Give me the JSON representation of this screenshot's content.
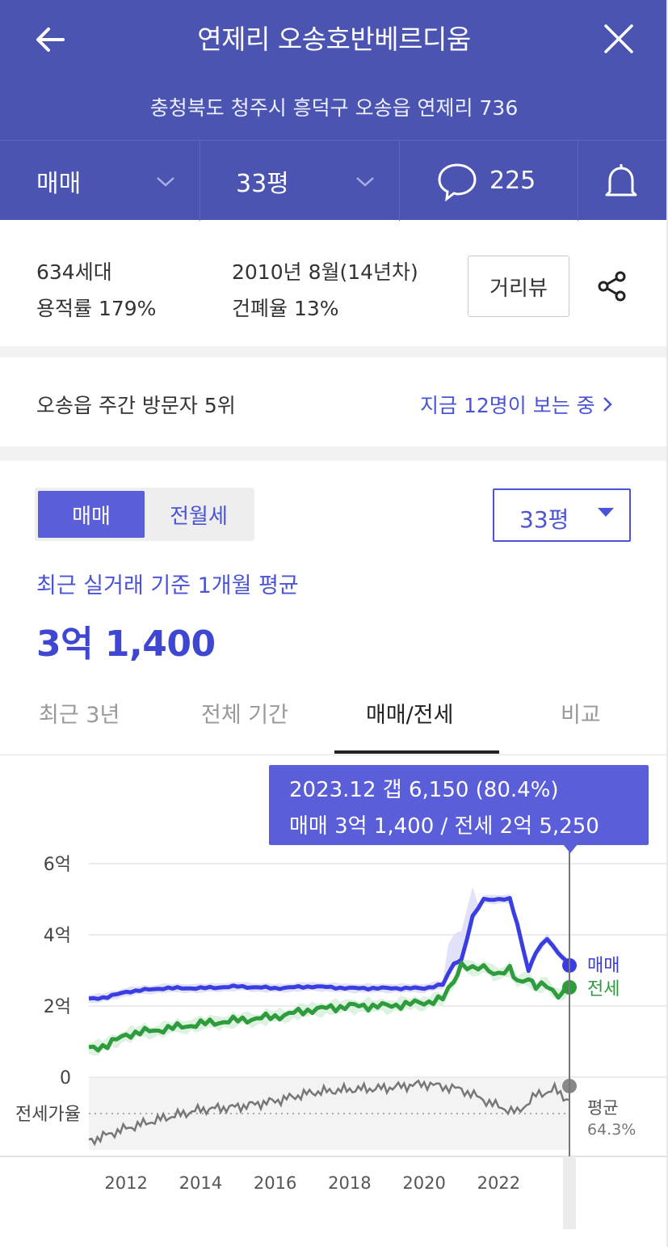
{
  "header": {
    "title": "연제리 오송호반베르디움",
    "address": "충청북도 청주시 흥덕구 오송읍 연제리 736",
    "deal_type": "매매",
    "size": "33평",
    "comment_count": "225"
  },
  "info": {
    "households": "634세대",
    "floor_area_ratio": "용적률 179%",
    "built": "2010년 8월(14년차)",
    "building_coverage": "건폐율 13%",
    "street_view_label": "거리뷰"
  },
  "visitors": {
    "rank_text": "오송읍 주간 방문자 5위",
    "live_text": "지금 12명이 보는 중"
  },
  "price": {
    "toggle_sale": "매매",
    "toggle_rent": "전월세",
    "size_select": "33평",
    "avg_label": "최근 실거래 기준 1개월 평균",
    "avg_value": "3억 1,400"
  },
  "tabs": [
    "최근 3년",
    "전체 기간",
    "매매/전세",
    "비교"
  ],
  "tooltip": {
    "line1": "2023.12  갭 6,150 (80.4%)",
    "line2": "매매 3억 1,400 / 전세 2억 5,250"
  },
  "chart_data": {
    "type": "line",
    "y_ticks": [
      "6억",
      "4억",
      "2억",
      "0"
    ],
    "ylim": [
      0,
      6
    ],
    "x_ticks": [
      "2012",
      "2014",
      "2016",
      "2018",
      "2020",
      "2022"
    ],
    "ratio_label": "전세가율",
    "series": [
      {
        "name": "매매",
        "color": "#3a3ee0",
        "x": [
          2011.0,
          2011.5,
          2012.0,
          2013.0,
          2014.0,
          2015.0,
          2016.0,
          2017.0,
          2018.0,
          2019.0,
          2020.0,
          2020.5,
          2020.8,
          2021.0,
          2021.3,
          2021.6,
          2022.0,
          2022.3,
          2022.5,
          2022.8,
          2023.0,
          2023.3,
          2023.6,
          2023.9
        ],
        "values": [
          2.2,
          2.25,
          2.4,
          2.5,
          2.5,
          2.55,
          2.5,
          2.55,
          2.5,
          2.5,
          2.5,
          2.6,
          3.2,
          3.3,
          4.5,
          5.0,
          5.0,
          5.0,
          4.3,
          3.0,
          3.5,
          3.9,
          3.5,
          3.14
        ]
      },
      {
        "name": "전세",
        "color": "#2e9b3c",
        "x": [
          2011.0,
          2011.5,
          2012.0,
          2013.0,
          2014.0,
          2015.0,
          2016.0,
          2017.0,
          2018.0,
          2019.0,
          2020.0,
          2020.5,
          2020.8,
          2021.0,
          2021.3,
          2021.6,
          2022.0,
          2022.3,
          2022.5,
          2022.8,
          2023.0,
          2023.3,
          2023.6,
          2023.9
        ],
        "values": [
          0.8,
          0.9,
          1.2,
          1.35,
          1.5,
          1.6,
          1.7,
          1.9,
          2.0,
          2.0,
          2.1,
          2.2,
          2.7,
          3.2,
          3.0,
          3.1,
          2.9,
          3.0,
          2.7,
          2.8,
          2.5,
          2.6,
          2.3,
          2.525
        ]
      }
    ],
    "ratio_series": {
      "x": [
        2011.0,
        2012.0,
        2013.0,
        2014.0,
        2015.0,
        2016.0,
        2017.0,
        2018.0,
        2019.0,
        2020.0,
        2020.5,
        2021.0,
        2021.5,
        2022.0,
        2022.5,
        2023.0,
        2023.5,
        2023.9
      ],
      "values": [
        36,
        45,
        52,
        58,
        60,
        64,
        70,
        72,
        73,
        76,
        74,
        72,
        66,
        60,
        56,
        68,
        72,
        64.3
      ]
    },
    "end_labels": {
      "sale": "매매",
      "rent": "전세",
      "avg": "평균",
      "avg_value": "64.3%"
    }
  }
}
